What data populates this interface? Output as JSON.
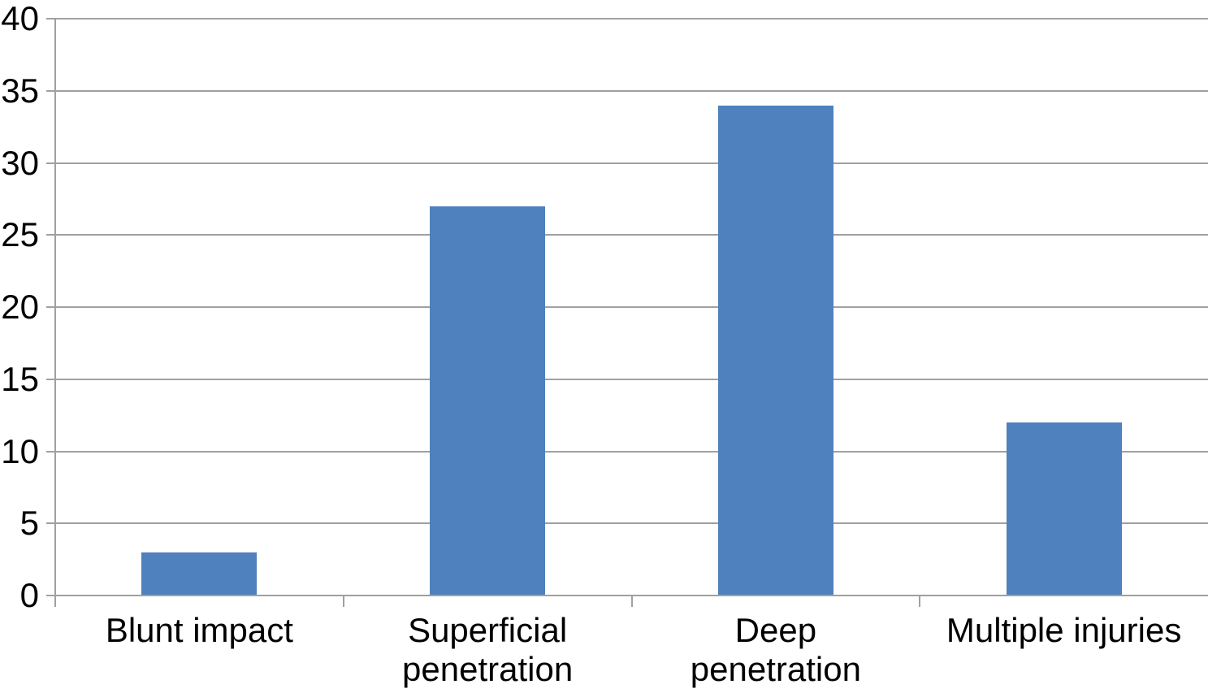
{
  "chart_data": {
    "type": "bar",
    "categories": [
      "Blunt impact",
      "Superficial\npenetration",
      "Deep\npenetration",
      "Multiple injuries"
    ],
    "values": [
      3,
      27,
      34,
      12
    ],
    "title": "",
    "xlabel": "",
    "ylabel": "",
    "ylim": [
      0,
      40
    ],
    "yticks": [
      0,
      5,
      10,
      15,
      20,
      25,
      30,
      35,
      40
    ],
    "grid": true,
    "legend_position": "none",
    "colors": {
      "bar": "#4E81BD",
      "gridline": "#A0A0A0",
      "axis": "#A0A0A0",
      "text": "#000000",
      "background": "#FFFFFF"
    }
  }
}
